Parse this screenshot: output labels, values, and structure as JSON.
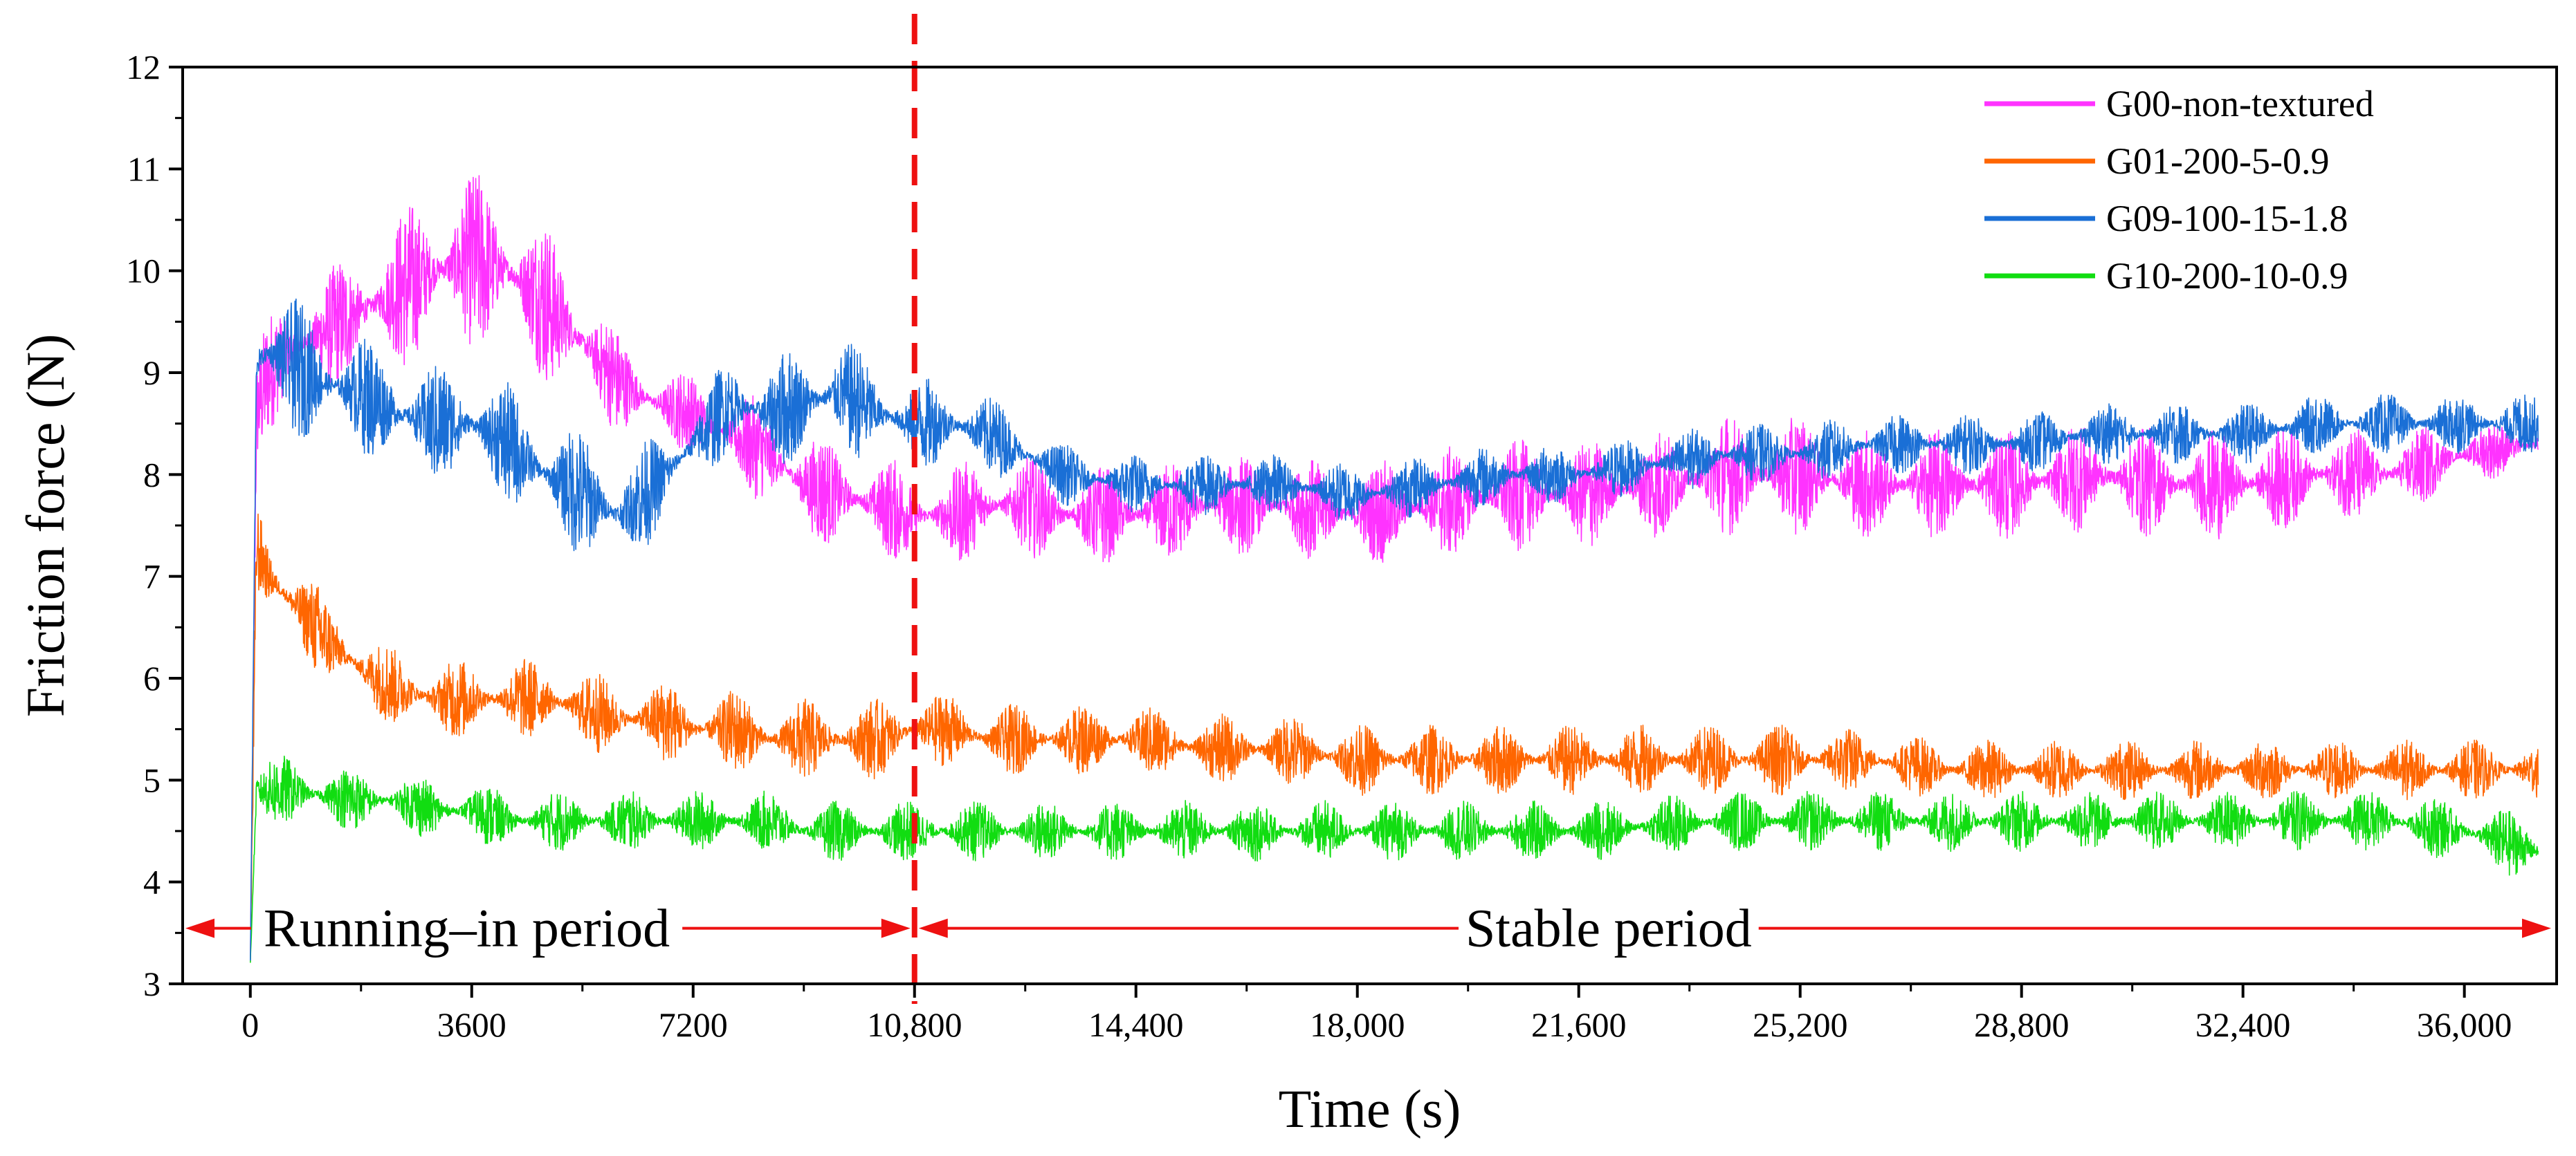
{
  "chart_data": {
    "type": "line",
    "title": "",
    "xlabel": "Time (s)",
    "ylabel": "Friction force (N)",
    "xlim": [
      -1100,
      37500
    ],
    "ylim": [
      3,
      12
    ],
    "xticks": [
      0,
      3600,
      7200,
      10800,
      14400,
      18000,
      21600,
      25200,
      28800,
      32400,
      36000
    ],
    "xtick_labels": [
      "0",
      "3600",
      "7200",
      "10,800",
      "14,400",
      "18,000",
      "21,600",
      "25,200",
      "28,800",
      "32,400",
      "36,000"
    ],
    "yticks": [
      3,
      4,
      5,
      6,
      7,
      8,
      9,
      10,
      11,
      12
    ],
    "ytick_labels": [
      "3",
      "4",
      "5",
      "6",
      "7",
      "8",
      "9",
      "10",
      "11",
      "12"
    ],
    "grid": false,
    "legend_position": "top-right",
    "series": [
      {
        "name": "G00-non-textured",
        "color": "#ff33ff",
        "x": [
          0,
          100,
          300,
          600,
          1200,
          1800,
          2400,
          3000,
          3600,
          4200,
          4800,
          5400,
          6000,
          6600,
          7200,
          7800,
          8400,
          9000,
          9600,
          10200,
          10800,
          11400,
          12000,
          12600,
          13200,
          14400,
          15600,
          16800,
          18000,
          19200,
          20400,
          21600,
          22800,
          24000,
          25200,
          26400,
          27600,
          28800,
          30000,
          31200,
          32400,
          33600,
          34800,
          36000,
          37200
        ],
        "y": [
          3.2,
          8.6,
          9.0,
          9.2,
          9.4,
          9.6,
          9.8,
          10.0,
          10.1,
          10.0,
          9.7,
          9.3,
          8.9,
          8.7,
          8.6,
          8.4,
          8.2,
          7.9,
          7.8,
          7.7,
          7.6,
          7.6,
          7.7,
          7.7,
          7.6,
          7.6,
          7.7,
          7.7,
          7.6,
          7.7,
          7.8,
          7.8,
          7.9,
          8.0,
          8.0,
          7.9,
          7.9,
          7.9,
          8.0,
          7.9,
          7.9,
          8.0,
          8.0,
          8.2,
          8.3
        ],
        "amp": [
          0.1,
          0.6,
          0.6,
          0.6,
          0.6,
          0.7,
          0.8,
          0.9,
          0.9,
          0.9,
          0.8,
          0.7,
          0.5,
          0.4,
          0.4,
          0.5,
          0.5,
          0.6,
          0.5,
          0.5,
          0.5,
          0.5,
          0.5,
          0.5,
          0.5,
          0.5,
          0.5,
          0.5,
          0.5,
          0.55,
          0.55,
          0.55,
          0.55,
          0.6,
          0.6,
          0.55,
          0.55,
          0.55,
          0.55,
          0.55,
          0.55,
          0.5,
          0.45,
          0.3,
          0.25
        ]
      },
      {
        "name": "G01-200-5-0.9",
        "color": "#ff6600",
        "x": [
          0,
          100,
          300,
          600,
          1200,
          1800,
          2400,
          3000,
          3600,
          4200,
          4800,
          5400,
          6000,
          6600,
          7200,
          7800,
          8400,
          9000,
          9600,
          10200,
          10800,
          11400,
          12000,
          12600,
          13200,
          14400,
          15600,
          16800,
          18000,
          19200,
          20400,
          21600,
          22800,
          24000,
          25200,
          26400,
          27600,
          28800,
          30000,
          31200,
          32400,
          33600,
          34800,
          36000,
          37200
        ],
        "y": [
          3.2,
          7.3,
          7.0,
          6.8,
          6.4,
          6.1,
          5.9,
          5.8,
          5.8,
          5.8,
          5.8,
          5.7,
          5.6,
          5.6,
          5.5,
          5.5,
          5.4,
          5.4,
          5.4,
          5.4,
          5.5,
          5.5,
          5.4,
          5.4,
          5.4,
          5.4,
          5.3,
          5.3,
          5.2,
          5.2,
          5.2,
          5.2,
          5.2,
          5.2,
          5.2,
          5.2,
          5.1,
          5.1,
          5.1,
          5.1,
          5.1,
          5.1,
          5.1,
          5.1,
          5.1
        ],
        "amp": [
          0.1,
          0.5,
          0.5,
          0.5,
          0.45,
          0.4,
          0.4,
          0.4,
          0.4,
          0.4,
          0.4,
          0.4,
          0.4,
          0.4,
          0.4,
          0.4,
          0.4,
          0.4,
          0.4,
          0.4,
          0.4,
          0.35,
          0.35,
          0.35,
          0.35,
          0.35,
          0.35,
          0.35,
          0.35,
          0.35,
          0.35,
          0.35,
          0.35,
          0.35,
          0.35,
          0.3,
          0.3,
          0.3,
          0.3,
          0.3,
          0.3,
          0.3,
          0.3,
          0.3,
          0.3
        ]
      },
      {
        "name": "G09-100-15-1.8",
        "color": "#1a6fd6",
        "x": [
          0,
          100,
          300,
          600,
          1200,
          1800,
          2400,
          3000,
          3600,
          4200,
          4800,
          5400,
          6000,
          6600,
          7200,
          7800,
          8400,
          9000,
          9600,
          10200,
          10800,
          11400,
          12000,
          12600,
          13200,
          14400,
          15600,
          16800,
          18000,
          19200,
          20400,
          21600,
          22800,
          24000,
          25200,
          26400,
          27600,
          28800,
          30000,
          31200,
          32400,
          33600,
          34800,
          36000,
          37200
        ],
        "y": [
          3.2,
          9.1,
          9.2,
          9.1,
          8.9,
          8.8,
          8.6,
          8.5,
          8.5,
          8.3,
          8.0,
          7.8,
          7.6,
          7.9,
          8.3,
          8.7,
          8.6,
          8.7,
          8.8,
          8.6,
          8.5,
          8.5,
          8.4,
          8.2,
          8.0,
          7.9,
          7.9,
          7.9,
          7.8,
          7.9,
          8.0,
          8.0,
          8.1,
          8.2,
          8.2,
          8.3,
          8.3,
          8.3,
          8.4,
          8.4,
          8.4,
          8.5,
          8.5,
          8.5,
          8.5
        ],
        "amp": [
          0.1,
          0.7,
          0.7,
          0.7,
          0.65,
          0.6,
          0.6,
          0.6,
          0.6,
          0.6,
          0.6,
          0.65,
          0.6,
          0.5,
          0.4,
          0.5,
          0.55,
          0.6,
          0.6,
          0.5,
          0.45,
          0.45,
          0.4,
          0.35,
          0.3,
          0.3,
          0.3,
          0.3,
          0.3,
          0.3,
          0.3,
          0.3,
          0.3,
          0.3,
          0.3,
          0.3,
          0.3,
          0.3,
          0.3,
          0.3,
          0.3,
          0.3,
          0.3,
          0.3,
          0.3
        ]
      },
      {
        "name": "G10-200-10-0.9",
        "color": "#11dd11",
        "x": [
          0,
          100,
          300,
          600,
          1200,
          1800,
          2400,
          3000,
          3600,
          4200,
          4800,
          5400,
          6000,
          6600,
          7200,
          7800,
          8400,
          9000,
          9600,
          10200,
          10800,
          11400,
          12000,
          12600,
          13200,
          14400,
          15600,
          16800,
          18000,
          19200,
          20400,
          21600,
          22800,
          24000,
          25200,
          26400,
          27600,
          28800,
          30000,
          31200,
          32400,
          33600,
          34800,
          36000,
          37200
        ],
        "y": [
          3.2,
          4.9,
          4.9,
          4.9,
          4.85,
          4.8,
          4.8,
          4.7,
          4.7,
          4.6,
          4.6,
          4.6,
          4.6,
          4.6,
          4.6,
          4.6,
          4.6,
          4.5,
          4.5,
          4.5,
          4.5,
          4.5,
          4.5,
          4.5,
          4.5,
          4.5,
          4.5,
          4.5,
          4.5,
          4.5,
          4.5,
          4.5,
          4.55,
          4.6,
          4.6,
          4.6,
          4.6,
          4.6,
          4.6,
          4.6,
          4.6,
          4.6,
          4.6,
          4.5,
          4.3
        ],
        "amp": [
          0.1,
          0.35,
          0.35,
          0.35,
          0.35,
          0.3,
          0.3,
          0.3,
          0.3,
          0.3,
          0.3,
          0.3,
          0.3,
          0.3,
          0.3,
          0.3,
          0.3,
          0.3,
          0.3,
          0.3,
          0.3,
          0.3,
          0.3,
          0.3,
          0.3,
          0.3,
          0.3,
          0.3,
          0.3,
          0.3,
          0.3,
          0.3,
          0.3,
          0.3,
          0.3,
          0.3,
          0.3,
          0.3,
          0.3,
          0.3,
          0.3,
          0.3,
          0.3,
          0.3,
          0.35
        ]
      }
    ],
    "divider": {
      "x": 10800,
      "color": "#ee1111"
    },
    "periods": [
      {
        "label": "Running–in period",
        "x_start": -1100,
        "x_end": 10800
      },
      {
        "label": "Stable period",
        "x_start": 10800,
        "x_end": 37500
      }
    ],
    "period_arrow_y": 3.6,
    "arrow_color": "#ee1111"
  }
}
